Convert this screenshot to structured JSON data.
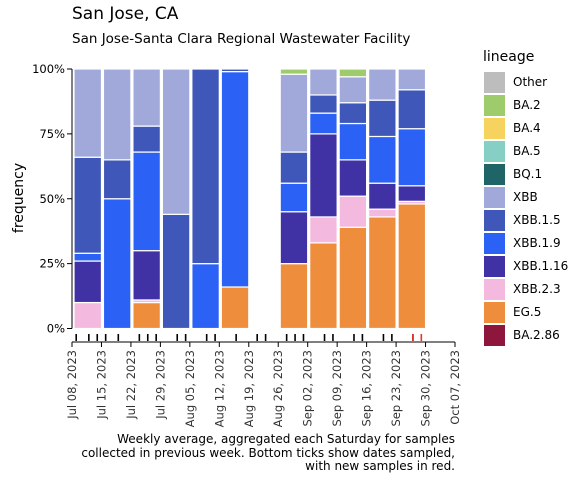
{
  "page": {
    "title": "San Jose, CA",
    "subtitle": "San Jose-Santa Clara Regional Wastewater Facility",
    "caption_lines": [
      "Weekly average, aggregated each Saturday for samples",
      "collected in previous week. Bottom ticks show dates sampled,",
      "with new samples in red."
    ]
  },
  "chart_data": {
    "type": "bar",
    "stacked": true,
    "ylabel": "frequency",
    "legend_title": "lineage",
    "legend_placement": "right",
    "ylim": [
      0,
      1
    ],
    "yticks": [
      "0%",
      "25%",
      "50%",
      "75%",
      "100%"
    ],
    "x_axis_dates": [
      "Jul 08, 2023",
      "Jul 15, 2023",
      "Jul 22, 2023",
      "Jul 29, 2023",
      "Aug 05, 2023",
      "Aug 12, 2023",
      "Aug 19, 2023",
      "Aug 26, 2023",
      "Sep 02, 2023",
      "Sep 09, 2023",
      "Sep 16, 2023",
      "Sep 23, 2023",
      "Sep 30, 2023",
      "Oct 07, 2023"
    ],
    "lineages": [
      "Other",
      "BA.2",
      "BA.4",
      "BA.5",
      "BQ.1",
      "XBB",
      "XBB.1.5",
      "XBB.1.9",
      "XBB.1.16",
      "XBB.2.3",
      "EG.5",
      "BA.2.86"
    ],
    "colors": {
      "Other": "#bdbdbd",
      "BA.2": "#9ecb6c",
      "BA.4": "#f6d25e",
      "BA.5": "#86cfc5",
      "BQ.1": "#1f6467",
      "XBB": "#a0a9da",
      "XBB.1.5": "#3e57b8",
      "XBB.1.9": "#2b61f5",
      "XBB.1.16": "#4032a5",
      "XBB.2.3": "#f4b9df",
      "EG.5": "#ee8e3d",
      "BA.2.86": "#8e153c"
    },
    "bars": [
      {
        "date": "Jul 08, 2023",
        "segments": [
          [
            "XBB.2.3",
            0.1
          ],
          [
            "XBB.1.16",
            0.16
          ],
          [
            "XBB.1.9",
            0.03
          ],
          [
            "XBB.1.5",
            0.37
          ],
          [
            "XBB",
            0.34
          ]
        ]
      },
      {
        "date": "Jul 15, 2023",
        "segments": [
          [
            "XBB.1.9",
            0.5
          ],
          [
            "XBB.1.5",
            0.15
          ],
          [
            "XBB",
            0.35
          ]
        ]
      },
      {
        "date": "Jul 22, 2023",
        "segments": [
          [
            "EG.5",
            0.1
          ],
          [
            "XBB.2.3",
            0.01
          ],
          [
            "XBB.1.16",
            0.19
          ],
          [
            "XBB.1.9",
            0.38
          ],
          [
            "XBB.1.5",
            0.1
          ],
          [
            "XBB",
            0.22
          ]
        ]
      },
      {
        "date": "Jul 29, 2023",
        "segments": [
          [
            "XBB.1.5",
            0.44
          ],
          [
            "XBB",
            0.56
          ]
        ]
      },
      {
        "date": "Aug 05, 2023",
        "segments": [
          [
            "XBB.1.9",
            0.25
          ],
          [
            "XBB.1.5",
            0.75
          ]
        ]
      },
      {
        "date": "Aug 12, 2023",
        "segments": [
          [
            "EG.5",
            0.16
          ],
          [
            "XBB.1.9",
            0.83
          ],
          [
            "XBB.1.5",
            0.01
          ]
        ]
      },
      {
        "date": "Aug 26, 2023",
        "segments": [
          [
            "EG.5",
            0.25
          ],
          [
            "XBB.1.16",
            0.2
          ],
          [
            "XBB.1.9",
            0.11
          ],
          [
            "XBB.1.5",
            0.12
          ],
          [
            "XBB",
            0.3
          ],
          [
            "BA.2",
            0.02
          ]
        ]
      },
      {
        "date": "Sep 02, 2023",
        "segments": [
          [
            "EG.5",
            0.33
          ],
          [
            "XBB.2.3",
            0.1
          ],
          [
            "XBB.1.16",
            0.32
          ],
          [
            "XBB.1.9",
            0.08
          ],
          [
            "XBB.1.5",
            0.07
          ],
          [
            "XBB",
            0.1
          ]
        ]
      },
      {
        "date": "Sep 09, 2023",
        "segments": [
          [
            "EG.5",
            0.39
          ],
          [
            "XBB.2.3",
            0.12
          ],
          [
            "XBB.1.16",
            0.14
          ],
          [
            "XBB.1.9",
            0.14
          ],
          [
            "XBB.1.5",
            0.08
          ],
          [
            "XBB",
            0.1
          ],
          [
            "BA.2",
            0.03
          ]
        ]
      },
      {
        "date": "Sep 16, 2023",
        "segments": [
          [
            "EG.5",
            0.43
          ],
          [
            "XBB.2.3",
            0.03
          ],
          [
            "XBB.1.16",
            0.1
          ],
          [
            "XBB.1.9",
            0.18
          ],
          [
            "XBB.1.5",
            0.14
          ],
          [
            "XBB",
            0.12
          ]
        ]
      },
      {
        "date": "Sep 23, 2023",
        "segments": [
          [
            "EG.5",
            0.48
          ],
          [
            "XBB.2.3",
            0.01
          ],
          [
            "XBB.1.16",
            0.06
          ],
          [
            "XBB.1.9",
            0.22
          ],
          [
            "XBB.1.5",
            0.15
          ],
          [
            "XBB",
            0.08
          ]
        ]
      }
    ],
    "sample_dates": [
      "Jul 09, 2023",
      "Jul 12, 2023",
      "Jul 14, 2023",
      "Jul 16, 2023",
      "Jul 19, 2023",
      "Jul 24, 2023",
      "Jul 26, 2023",
      "Jul 28, 2023",
      "Aug 02, 2023",
      "Aug 04, 2023",
      "Aug 09, 2023",
      "Aug 11, 2023",
      "Aug 16, 2023",
      "Aug 21, 2023",
      "Aug 23, 2023",
      "Aug 28, 2023",
      "Aug 30, 2023",
      "Sep 01, 2023",
      "Sep 06, 2023",
      "Sep 08, 2023",
      "Sep 13, 2023",
      "Sep 15, 2023",
      "Sep 20, 2023",
      "Sep 22, 2023",
      "Sep 27, 2023"
    ],
    "new_sample_dates": [
      "Sep 27, 2023",
      "Sep 29, 2023"
    ]
  }
}
